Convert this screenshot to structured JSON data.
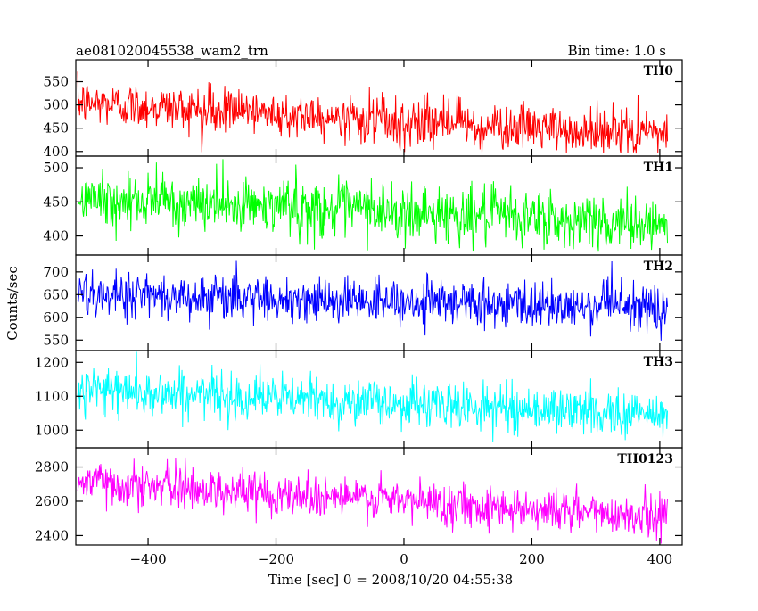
{
  "header": {
    "left_title": "ae081020045538_wam2_trn",
    "right_title": "Bin time: 1.0 s"
  },
  "chart_data": {
    "type": "line",
    "x_label": "Time [sec] 0 = 2008/10/20 04:55:38",
    "y_label": "Counts/sec",
    "x_range": [
      -513,
      435
    ],
    "x_ticks": [
      -400,
      -200,
      0,
      200,
      400
    ],
    "x_tick_labels": [
      "−400",
      "−200",
      "0",
      "200",
      "400"
    ],
    "data_x_range": [
      -510,
      412
    ],
    "bin_time_s": 1.0,
    "panels": [
      {
        "name": "TH0",
        "color": "#ff0000",
        "ylim": [
          390,
          597
        ],
        "y_ticks": [
          400,
          450,
          500,
          550
        ],
        "y_tick_labels": [
          "400",
          "450",
          "500",
          "550"
        ],
        "trend_start": 505,
        "trend_end": 435,
        "noise_sd": 24,
        "value_range_observed": [
          395,
          597
        ]
      },
      {
        "name": "TH1",
        "color": "#00ff00",
        "ylim": [
          372,
          517
        ],
        "y_ticks": [
          400,
          450,
          500
        ],
        "y_tick_labels": [
          "400",
          "450",
          "500"
        ],
        "trend_start": 455,
        "trend_end": 418,
        "noise_sd": 21,
        "value_range_observed": [
          378,
          517
        ]
      },
      {
        "name": "TH2",
        "color": "#0000ff",
        "ylim": [
          527,
          737
        ],
        "y_ticks": [
          550,
          600,
          650,
          700
        ],
        "y_tick_labels": [
          "550",
          "600",
          "650",
          "700"
        ],
        "trend_start": 653,
        "trend_end": 618,
        "noise_sd": 26,
        "value_range_observed": [
          530,
          737
        ]
      },
      {
        "name": "TH3",
        "color": "#00ffff",
        "ylim": [
          948,
          1235
        ],
        "y_ticks": [
          1000,
          1100,
          1200
        ],
        "y_tick_labels": [
          "1000",
          "1100",
          "1200"
        ],
        "trend_start": 1120,
        "trend_end": 1045,
        "noise_sd": 34,
        "value_range_observed": [
          955,
          1235
        ]
      },
      {
        "name": "TH0123",
        "color": "#ff00ff",
        "ylim": [
          2345,
          2912
        ],
        "y_ticks": [
          2400,
          2600,
          2800
        ],
        "y_tick_labels": [
          "2400",
          "2600",
          "2800"
        ],
        "trend_start": 2715,
        "trend_end": 2510,
        "noise_sd": 62,
        "value_range_observed": [
          2350,
          2912
        ]
      }
    ]
  }
}
